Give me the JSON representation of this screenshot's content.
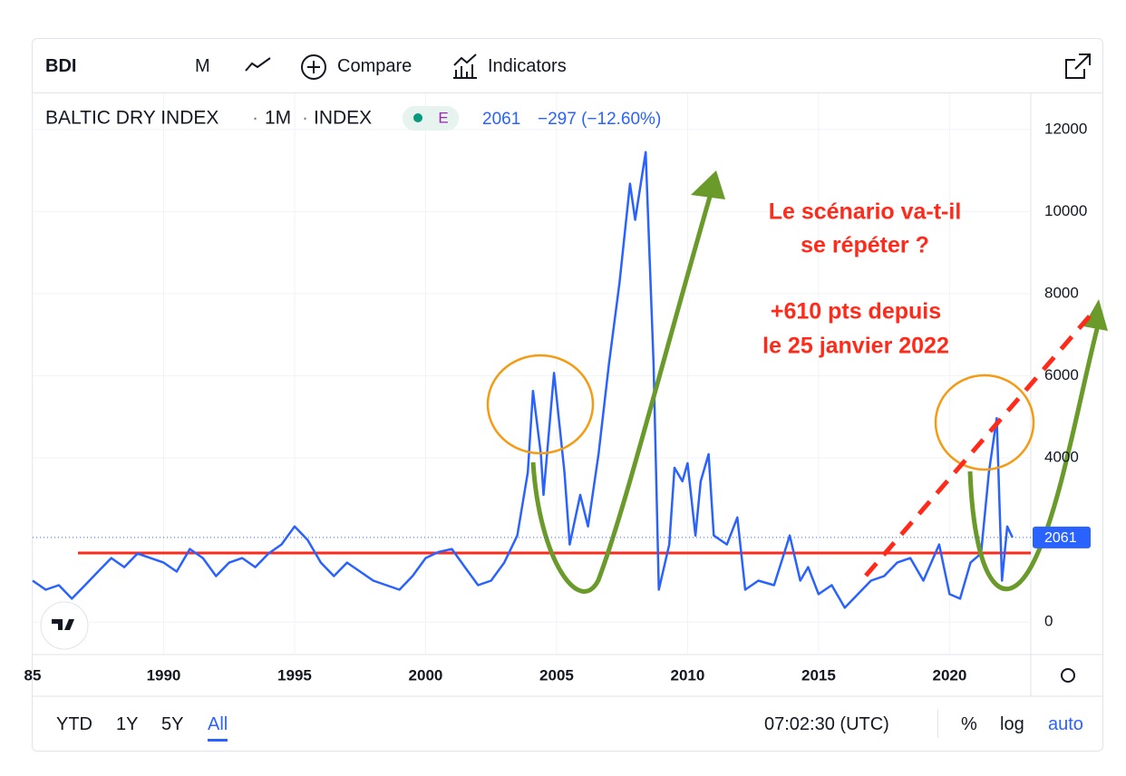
{
  "toolbar": {
    "symbol": "BDI",
    "interval": "M",
    "compare": "Compare",
    "indicators": "Indicators"
  },
  "legend": {
    "name": "BALTIC DRY INDEX",
    "interval": "1M",
    "exchange": "INDEX",
    "badge": "E",
    "last": 2061,
    "change": "−297 (−12.60%)"
  },
  "chart_data": {
    "type": "line",
    "color": "#2962ff",
    "x": [
      1985.0,
      1985.5,
      1986.0,
      1986.5,
      1987.0,
      1987.5,
      1988.0,
      1988.5,
      1989.0,
      1989.5,
      1990.0,
      1990.5,
      1991.0,
      1991.5,
      1992.0,
      1992.5,
      1993.0,
      1993.5,
      1994.0,
      1994.5,
      1995.0,
      1995.5,
      1996.0,
      1996.5,
      1997.0,
      1997.5,
      1998.0,
      1998.5,
      1999.0,
      1999.5,
      2000.0,
      2000.5,
      2001.0,
      2001.5,
      2002.0,
      2002.5,
      2003.0,
      2003.5,
      2003.9,
      2004.1,
      2004.4,
      2004.5,
      2004.9,
      2005.3,
      2005.5,
      2005.9,
      2006.2,
      2006.6,
      2007.0,
      2007.4,
      2007.8,
      2008.0,
      2008.4,
      2008.7,
      2008.9,
      2009.3,
      2009.5,
      2009.8,
      2010.0,
      2010.3,
      2010.5,
      2010.8,
      2011.0,
      2011.5,
      2011.9,
      2012.2,
      2012.7,
      2013.3,
      2013.9,
      2014.3,
      2014.6,
      2015.0,
      2015.5,
      2016.0,
      2016.5,
      2017.0,
      2017.5,
      2018.0,
      2018.5,
      2019.0,
      2019.6,
      2020.0,
      2020.4,
      2020.8,
      2021.2,
      2021.5,
      2021.8,
      2022.0,
      2022.2,
      2022.4
    ],
    "values": [
      1010,
      790,
      900,
      570,
      900,
      1230,
      1560,
      1340,
      1670,
      1560,
      1450,
      1230,
      1780,
      1560,
      1120,
      1450,
      1560,
      1340,
      1670,
      1890,
      2330,
      2000,
      1450,
      1120,
      1450,
      1230,
      1010,
      900,
      790,
      1120,
      1560,
      1710,
      1780,
      1340,
      900,
      1010,
      1450,
      2110,
      3650,
      5630,
      4090,
      3100,
      6070,
      3650,
      1890,
      3100,
      2330,
      4090,
      6290,
      8260,
      10680,
      9800,
      11450,
      6290,
      790,
      1890,
      3760,
      3430,
      3870,
      2110,
      3430,
      4090,
      2110,
      1890,
      2550,
      790,
      1010,
      900,
      2110,
      1010,
      1340,
      680,
      900,
      350,
      680,
      1010,
      1120,
      1450,
      1560,
      1010,
      1890,
      680,
      570,
      1450,
      1670,
      3650,
      4970,
      1010,
      2330,
      2061
    ],
    "xlim": [
      1985.0,
      2023.1
    ],
    "ylim": [
      -790,
      12880
    ],
    "xticks": [
      {
        "value": 1985,
        "label": "85"
      },
      1990,
      1995,
      2000,
      2005,
      2010,
      2015,
      2020
    ],
    "yticks": [
      0,
      4000,
      6000,
      8000,
      10000,
      12000
    ]
  },
  "annotations": [
    "Le scénario va-t-il",
    "se répéter ?",
    "+610 pts depuis",
    "le 25 janvier 2022"
  ],
  "footer": {
    "ranges": [
      "YTD",
      "1Y",
      "5Y",
      "All"
    ],
    "time": "07:02:30 (UTC)",
    "percent": "%",
    "log": "log",
    "auto": "auto"
  }
}
